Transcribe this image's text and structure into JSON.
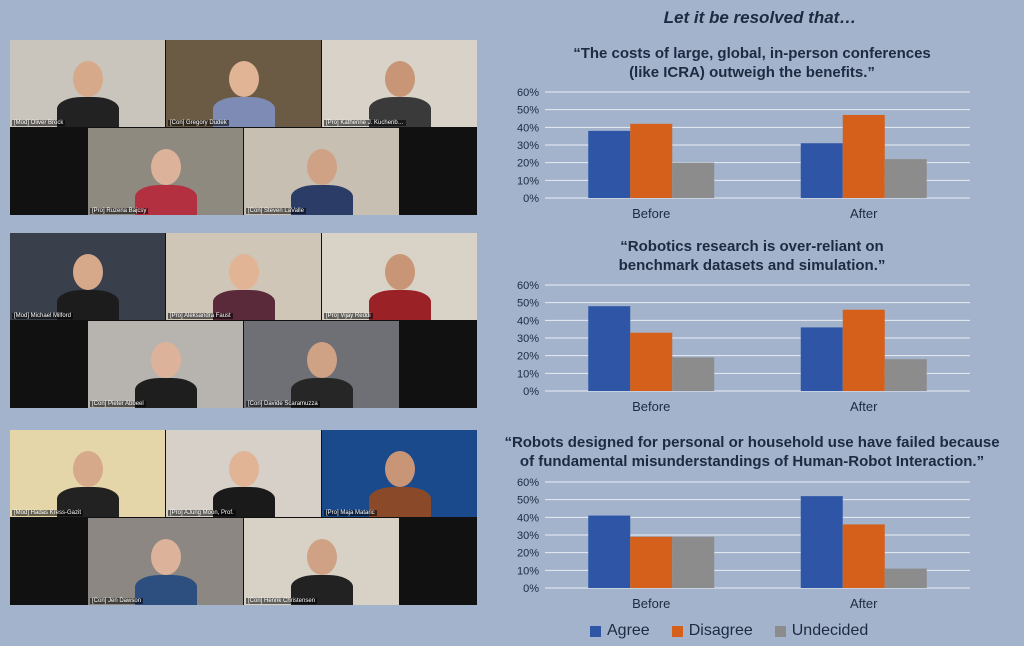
{
  "heading": "Let it be resolved that…",
  "panels": [
    {
      "participants": [
        "[Mod] Oliver Brock",
        "[Con] Gregory Dudek",
        "[Pro] Katherine J. Kuchenb…",
        "[Pro] Ruzena Bajcsy",
        "[Con] Steven LaValle"
      ]
    },
    {
      "participants": [
        "[Mod] Michael Milford",
        "[Pro] Aleksandra Faust",
        "[Pro] Vijay Reddi",
        "[Con] Pieter Abbeel",
        "[Con] Davide Scaramuzza"
      ]
    },
    {
      "participants": [
        "[Mod] Hadas Kress-Gazit",
        "[Pro] AJung Moon, Prof.",
        "[Pro] Maja Mataric",
        "[Con] Jen Dawson",
        "[Con] Henrik Christensen"
      ]
    }
  ],
  "colors": {
    "agree": "#2f56a6",
    "disagree": "#d4601b",
    "undecided": "#8c8c8c",
    "bg": "#a3b3cc"
  },
  "legend": [
    "Agree",
    "Disagree",
    "Undecided"
  ],
  "chart_data": [
    {
      "type": "bar",
      "title": "“The costs of large, global, in-person conferences (like ICRA) outweigh the benefits.”",
      "title_lines": [
        "“The costs of large, global, in-person conferences",
        "(like ICRA) outweigh the benefits.”"
      ],
      "categories": [
        "Before",
        "After"
      ],
      "series": [
        {
          "name": "Agree",
          "values": [
            38,
            31
          ]
        },
        {
          "name": "Disagree",
          "values": [
            42,
            47
          ]
        },
        {
          "name": "Undecided",
          "values": [
            20,
            22
          ]
        }
      ],
      "yticks": [
        "0%",
        "10%",
        "20%",
        "30%",
        "40%",
        "50%",
        "60%"
      ],
      "ylim": [
        0,
        60
      ],
      "grid": true,
      "legend": "bottom"
    },
    {
      "type": "bar",
      "title": "“Robotics research is over-reliant on benchmark datasets and simulation.”",
      "title_lines": [
        "“Robotics research is over-reliant on",
        "benchmark datasets and simulation.”"
      ],
      "categories": [
        "Before",
        "After"
      ],
      "series": [
        {
          "name": "Agree",
          "values": [
            48,
            36
          ]
        },
        {
          "name": "Disagree",
          "values": [
            33,
            46
          ]
        },
        {
          "name": "Undecided",
          "values": [
            19,
            18
          ]
        }
      ],
      "yticks": [
        "0%",
        "10%",
        "20%",
        "30%",
        "40%",
        "50%",
        "60%"
      ],
      "ylim": [
        0,
        60
      ],
      "grid": true,
      "legend": "bottom"
    },
    {
      "type": "bar",
      "title": "“Robots designed for personal or household use have failed because of fundamental misunderstandings of Human-Robot Interaction.”",
      "title_lines": [
        "“Robots designed for personal or household use have failed because",
        "of fundamental misunderstandings of Human-Robot Interaction.”"
      ],
      "categories": [
        "Before",
        "After"
      ],
      "series": [
        {
          "name": "Agree",
          "values": [
            41,
            52
          ]
        },
        {
          "name": "Disagree",
          "values": [
            29,
            36
          ]
        },
        {
          "name": "Undecided",
          "values": [
            29,
            11
          ]
        }
      ],
      "yticks": [
        "0%",
        "10%",
        "20%",
        "30%",
        "40%",
        "50%",
        "60%"
      ],
      "ylim": [
        0,
        60
      ],
      "grid": true,
      "legend": "bottom"
    }
  ]
}
